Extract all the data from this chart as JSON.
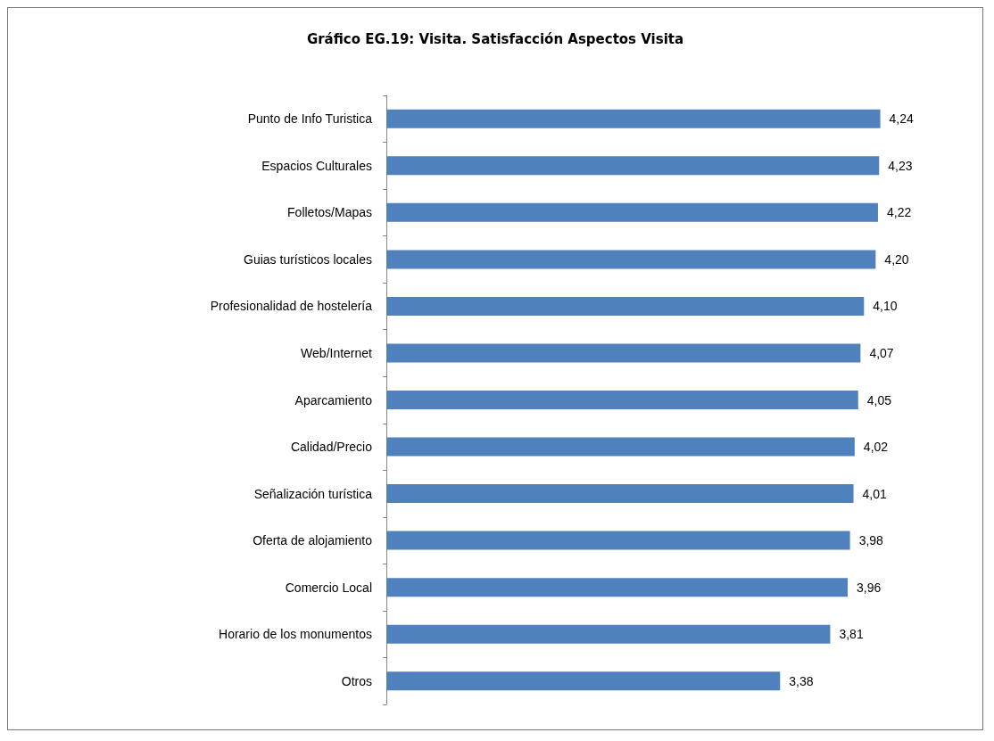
{
  "chart_data": {
    "type": "bar",
    "orientation": "horizontal",
    "title": "Gráfico EG.19: Visita. Satisfacción Aspectos Visita",
    "categories": [
      "Punto de Info Turistica",
      "Espacios Culturales",
      "Folletos/Mapas",
      "Guias turísticos locales",
      "Profesionalidad de hostelería",
      "Web/Internet",
      "Aparcamiento",
      "Calidad/Precio",
      "Señalización turística",
      "Oferta de alojamiento",
      "Comercio Local",
      "Horario de los monumentos",
      "Otros"
    ],
    "values": [
      4.24,
      4.23,
      4.22,
      4.2,
      4.1,
      4.07,
      4.05,
      4.02,
      4.01,
      3.98,
      3.96,
      3.81,
      3.38
    ],
    "value_labels": [
      "4,24",
      "4,23",
      "4,22",
      "4,20",
      "4,10",
      "4,07",
      "4,05",
      "4,02",
      "4,01",
      "3,98",
      "3,96",
      "3,81",
      "3,38"
    ],
    "color": "#4f81bd"
  }
}
